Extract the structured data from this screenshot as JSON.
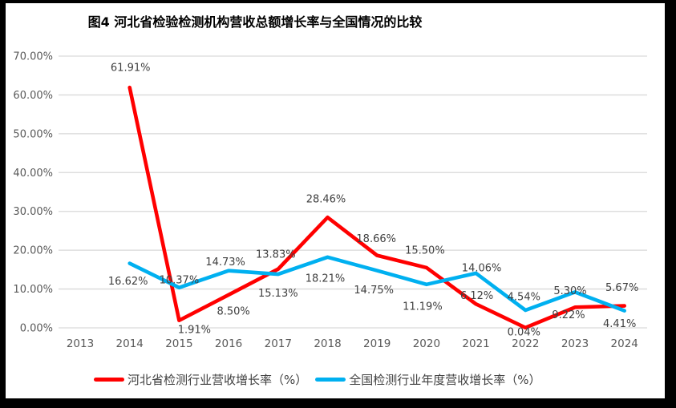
{
  "title": "图4 河北省检验检测机构营收总额增长率与全国情况的比较",
  "colors": {
    "background": "#000000",
    "chart_background": "#FFFFFF",
    "hebei_line": "#FF0000",
    "national_line": "#00B0F0",
    "gridline": "#D9D9D9",
    "axis_text": "#595959",
    "data_label_text": "#3F3F3F",
    "title_text": "#000000"
  },
  "chart_data": {
    "type": "line",
    "title": "图4 河北省检验检测机构营收总额增长率与全国情况的比较",
    "categories": [
      "2013",
      "2014",
      "2015",
      "2016",
      "2017",
      "2018",
      "2019",
      "2020",
      "2021",
      "2022",
      "2023",
      "2024"
    ],
    "series": [
      {
        "name": "河北省检测行业营收增长率（%）",
        "color": "#FF0000",
        "values": [
          null,
          61.91,
          1.91,
          8.5,
          15.13,
          28.46,
          18.66,
          15.5,
          6.12,
          0.04,
          5.3,
          5.67
        ],
        "label_offsets": [
          null,
          [
            1,
            -25
          ],
          [
            19,
            11
          ],
          [
            6,
            20
          ],
          [
            0,
            30
          ],
          [
            -2,
            -23
          ],
          [
            -1,
            -21
          ],
          [
            -2,
            -22
          ],
          [
            1,
            -11
          ],
          [
            -2,
            5
          ],
          [
            -6,
            -21
          ],
          [
            -3,
            -23
          ]
        ]
      },
      {
        "name": "全国检测行业年度营收增长率（%）",
        "color": "#00B0F0",
        "values": [
          null,
          16.62,
          10.37,
          14.73,
          13.83,
          18.21,
          14.75,
          11.19,
          14.06,
          4.54,
          9.22,
          4.41
        ],
        "label_offsets": [
          null,
          [
            -2,
            22
          ],
          [
            0,
            -10
          ],
          [
            -4,
            -11
          ],
          [
            -3,
            -25
          ],
          [
            -3,
            26
          ],
          [
            -4,
            24
          ],
          [
            -5,
            27
          ],
          [
            7,
            -7
          ],
          [
            -2,
            -17
          ],
          [
            -8,
            28
          ],
          [
            -6,
            16
          ]
        ]
      }
    ],
    "y_ticks": [
      "0.00%",
      "10.00%",
      "20.00%",
      "30.00%",
      "40.00%",
      "50.00%",
      "60.00%",
      "70.00%"
    ],
    "ylim": [
      0,
      70
    ],
    "grid": true,
    "legend_position": "bottom",
    "data_labels": true,
    "label_format": "0.00%"
  },
  "legend": {
    "items": [
      {
        "label": "河北省检测行业营收增长率（%）",
        "color": "#FF0000"
      },
      {
        "label": "全国检测行业年度营收增长率（%）",
        "color": "#00B0F0"
      }
    ]
  }
}
